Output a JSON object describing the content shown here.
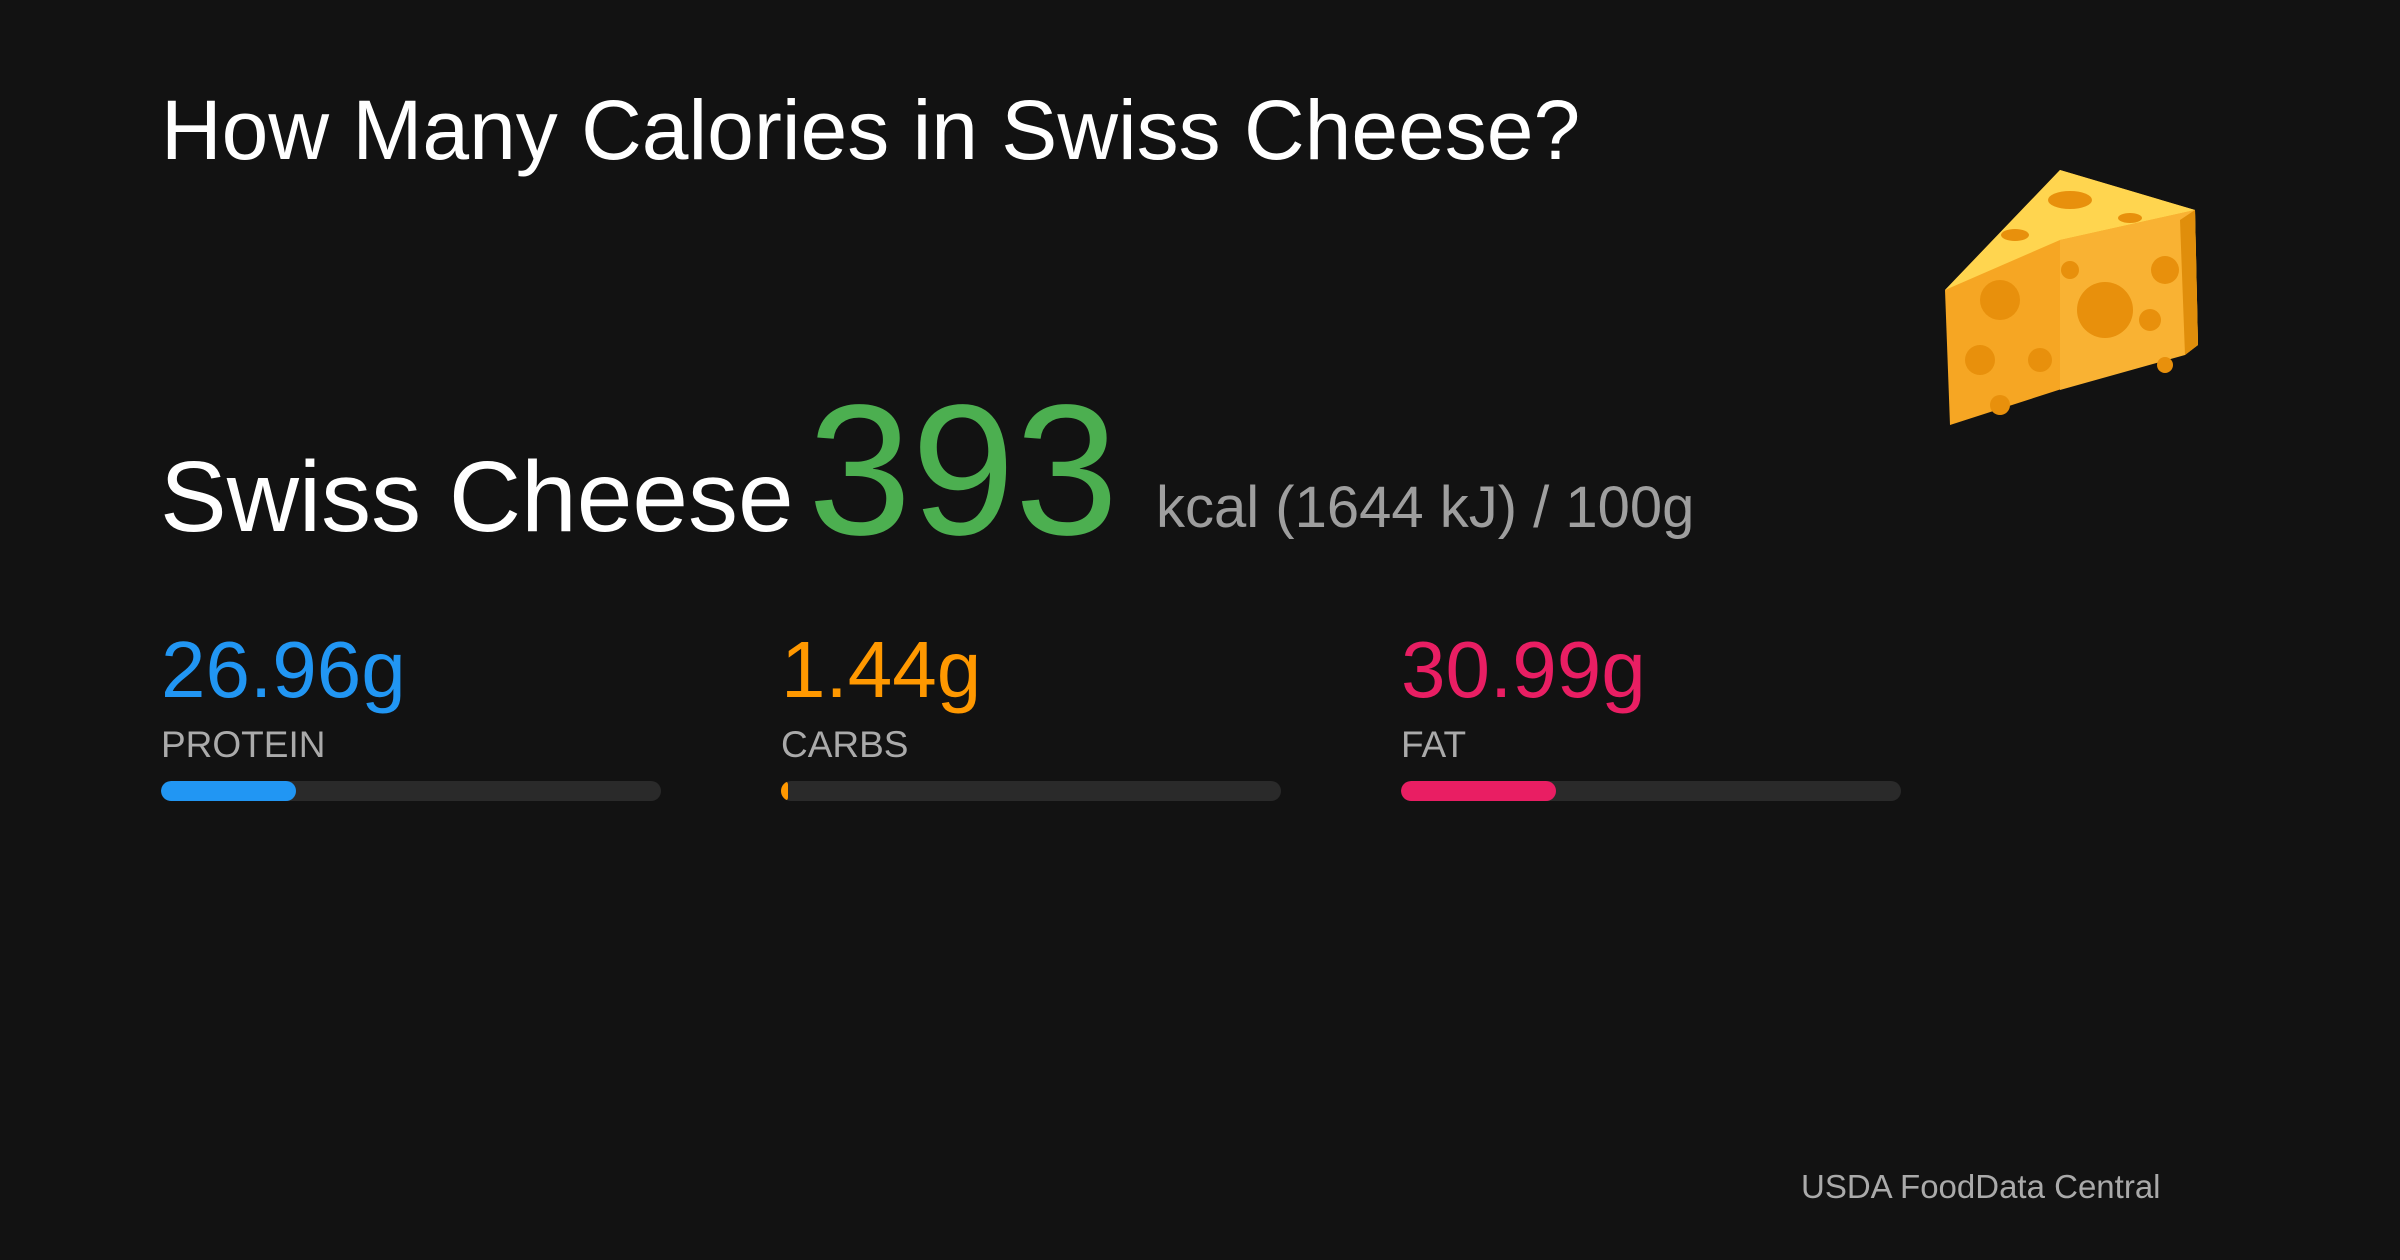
{
  "title": "How Many Calories in Swiss Cheese?",
  "food": "Swiss Cheese",
  "calories": 393,
  "calorie_unit": "kcal (1644 kJ) / 100g",
  "bar_range": [
    0,
    100
  ],
  "macros": [
    {
      "name": "PROTEIN",
      "value": 26.96,
      "value_label": "26.96g",
      "color": "#2196f3"
    },
    {
      "name": "CARBS",
      "value": 1.44,
      "value_label": "1.44g",
      "color": "#ff9800"
    },
    {
      "name": "FAT",
      "value": 30.99,
      "value_label": "30.99g",
      "color": "#e91e63"
    }
  ],
  "calorie_color": "#4caf50",
  "source": "USDA FoodData Central"
}
